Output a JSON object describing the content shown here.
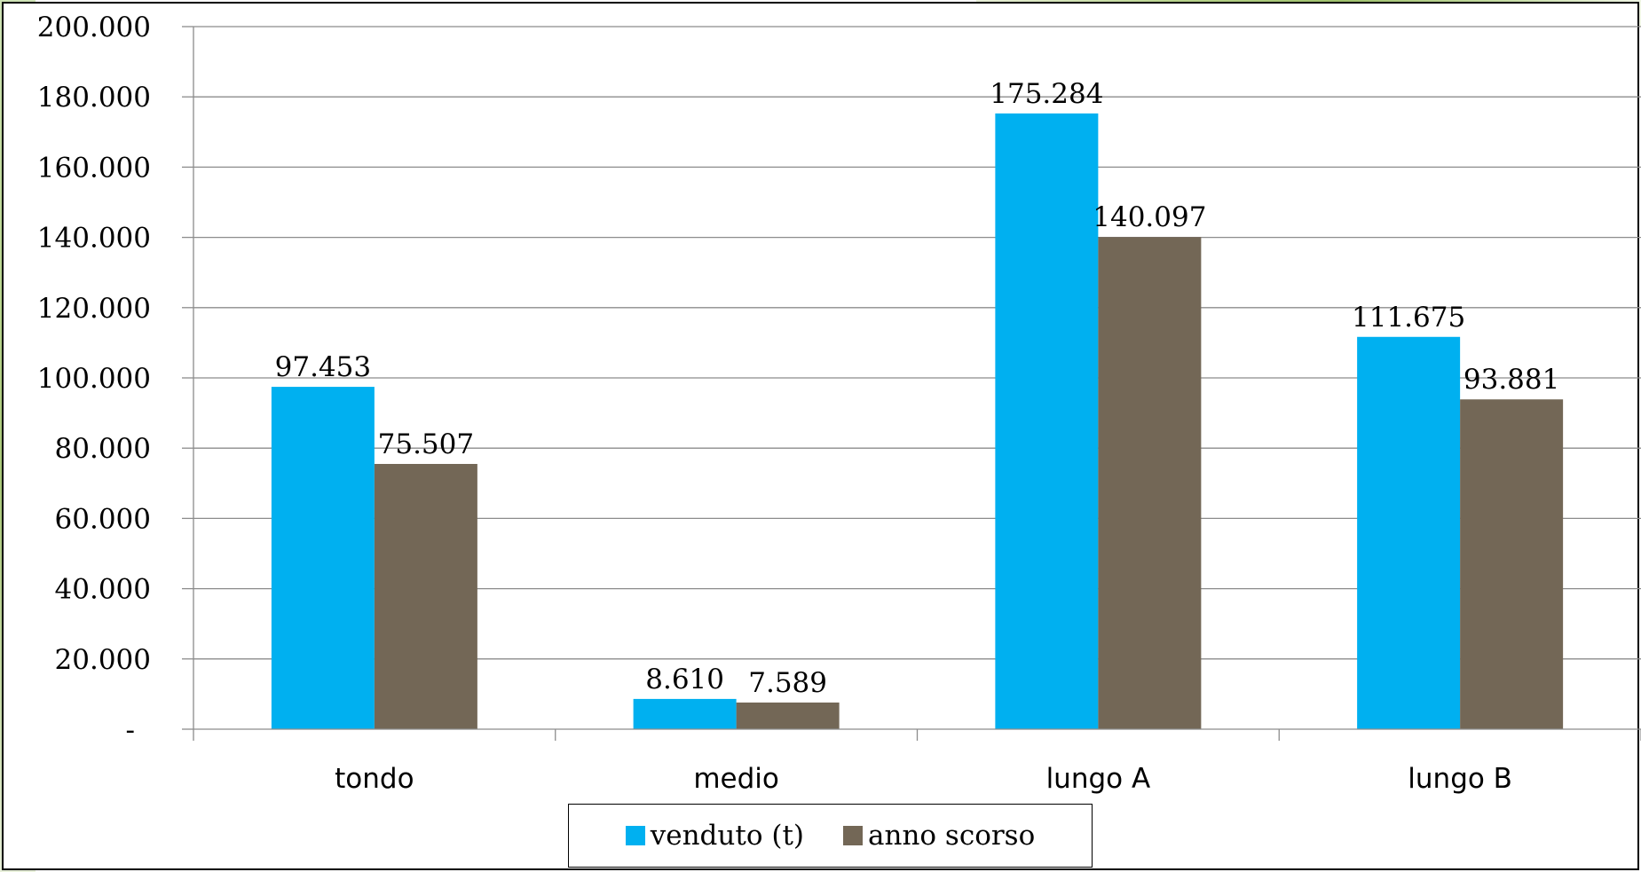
{
  "chart_data": {
    "type": "bar",
    "title": "",
    "xlabel": "",
    "ylabel": "",
    "categories": [
      "tondo",
      "medio",
      "lungo A",
      "lungo B"
    ],
    "series": [
      {
        "name": "venduto (t)",
        "color": "#00B0F0",
        "values": [
          97453,
          8610,
          175284,
          111675
        ],
        "labels": [
          "97.453",
          "8.610",
          "175.284",
          "111.675"
        ]
      },
      {
        "name": "anno scorso",
        "color": "#736756",
        "values": [
          75507,
          7589,
          140097,
          93881
        ],
        "labels": [
          "75.507",
          "7.589",
          "140.097",
          "93.881"
        ]
      }
    ],
    "ylim": [
      0,
      200000
    ],
    "yticks": [
      0,
      20000,
      40000,
      60000,
      80000,
      100000,
      120000,
      140000,
      160000,
      180000,
      200000
    ],
    "ytick_labels": [
      "-",
      "20.000",
      "40.000",
      "60.000",
      "80.000",
      "100.000",
      "120.000",
      "140.000",
      "160.000",
      "180.000",
      "200.000"
    ],
    "grid": true,
    "legend_position": "bottom"
  }
}
